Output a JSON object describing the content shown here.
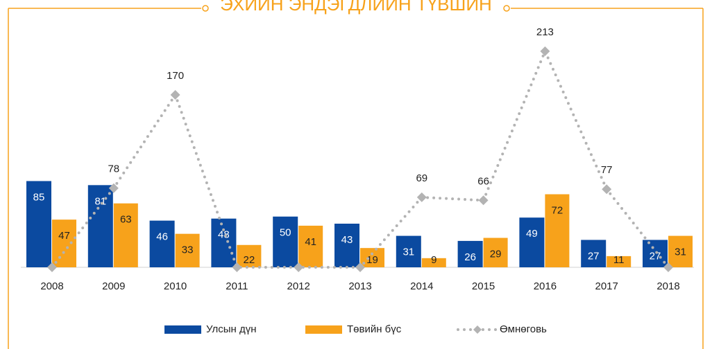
{
  "chart_data": {
    "type": "bar",
    "title": "ЭХИЙН ЭНДЭГДЛИЙН ТҮВШИН",
    "categories": [
      "2008",
      "2009",
      "2010",
      "2011",
      "2012",
      "2013",
      "2014",
      "2015",
      "2016",
      "2017",
      "2018"
    ],
    "series": [
      {
        "name": "Улсын дүн",
        "color": "#0b4aa0",
        "type": "bar",
        "values": [
          85,
          81,
          46,
          48,
          50,
          43,
          31,
          26,
          49,
          27,
          27
        ]
      },
      {
        "name": "Төвийн бүс",
        "color": "#f7a21b",
        "type": "bar",
        "values": [
          47,
          63,
          33,
          22,
          41,
          19,
          9,
          29,
          72,
          11,
          31
        ]
      },
      {
        "name": "Өмнөговь",
        "color": "#b3b3b3",
        "type": "line",
        "values": [
          0,
          78,
          170,
          0,
          0,
          0,
          69,
          66,
          213,
          77,
          0
        ]
      }
    ],
    "ylim": [
      0,
      230
    ],
    "legend": "bottom"
  }
}
